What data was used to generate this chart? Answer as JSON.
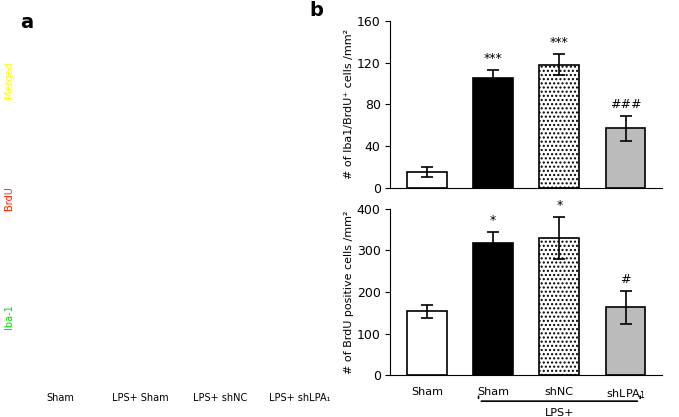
{
  "top_chart": {
    "ylabel": "# of Iba1/BrdU⁺ cells /mm²",
    "categories": [
      "Sham",
      "Sham",
      "shNC",
      "shLPA₁"
    ],
    "values": [
      15,
      105,
      118,
      57
    ],
    "errors": [
      5,
      8,
      10,
      12
    ],
    "ylim": [
      0,
      160
    ],
    "yticks": [
      0,
      40,
      80,
      120,
      160
    ],
    "bar_colors": [
      "white",
      "black",
      "dotted_black",
      "lightgray"
    ],
    "annotations": [
      "",
      "***",
      "***",
      "###"
    ]
  },
  "bottom_chart": {
    "ylabel": "# of BrdU positive cells /mm²",
    "categories": [
      "Sham",
      "Sham",
      "shNC",
      "shLPA₁"
    ],
    "values": [
      153,
      318,
      330,
      163
    ],
    "errors": [
      15,
      25,
      50,
      40
    ],
    "ylim": [
      0,
      400
    ],
    "yticks": [
      0,
      100,
      200,
      300,
      400
    ],
    "bar_colors": [
      "white",
      "black",
      "dotted_black",
      "lightgray"
    ],
    "annotations": [
      "",
      "*",
      "*",
      "#"
    ],
    "xlabel_group": "LPS+"
  },
  "bar_width": 0.6,
  "figure_bg": "white",
  "font_size": 9,
  "title_font_size": 14,
  "left_panel_labels": [
    "Iba-1",
    "BrdU",
    "Merged"
  ],
  "left_panel_label_colors": [
    "#00dd00",
    "#ff2200",
    "#ffff00"
  ],
  "bottom_col_labels": [
    "Sham",
    "LPS+ Sham",
    "LPS+ shNC",
    "LPS+ shLPA₁"
  ]
}
